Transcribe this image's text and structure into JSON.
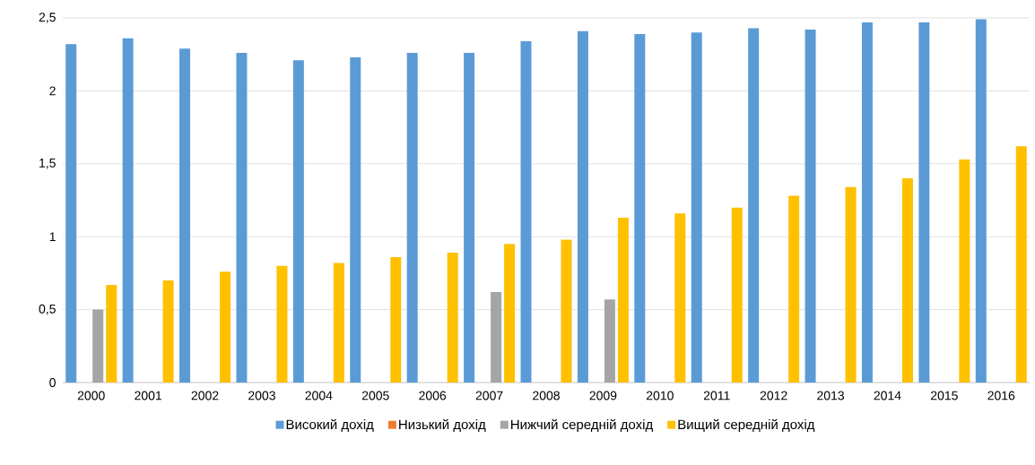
{
  "chart_data": {
    "type": "bar",
    "categories": [
      "2000",
      "2001",
      "2002",
      "2003",
      "2004",
      "2005",
      "2006",
      "2007",
      "2008",
      "2009",
      "2010",
      "2011",
      "2012",
      "2013",
      "2014",
      "2015",
      "2016"
    ],
    "series": [
      {
        "name": "Високий дохід",
        "color": "#5b9bd5",
        "values": [
          2.32,
          2.36,
          2.29,
          2.26,
          2.21,
          2.23,
          2.26,
          2.26,
          2.34,
          2.41,
          2.39,
          2.4,
          2.43,
          2.42,
          2.47,
          2.47,
          2.49
        ]
      },
      {
        "name": "Низький дохід",
        "color": "#ed7d31",
        "values": [
          null,
          null,
          null,
          null,
          null,
          null,
          null,
          null,
          null,
          null,
          null,
          null,
          null,
          null,
          null,
          null,
          null
        ]
      },
      {
        "name": "Нижчий середній дохід",
        "color": "#a5a5a5",
        "values": [
          0.5,
          null,
          null,
          null,
          null,
          null,
          null,
          0.62,
          null,
          0.57,
          null,
          null,
          null,
          null,
          null,
          null,
          null
        ]
      },
      {
        "name": "Вищий середній дохід",
        "color": "#ffc000",
        "values": [
          0.67,
          0.7,
          0.76,
          0.8,
          0.82,
          0.86,
          0.89,
          0.95,
          0.98,
          1.13,
          1.16,
          1.2,
          1.28,
          1.34,
          1.4,
          1.53,
          1.62
        ]
      }
    ],
    "ylim": [
      0,
      2.5
    ],
    "yticks": [
      0,
      {
        "value": 0.5,
        "label": "0,5"
      },
      1,
      {
        "value": 1.5,
        "label": "1,5"
      },
      2,
      {
        "value": 2.5,
        "label": "2,5"
      }
    ],
    "grid": "y",
    "legend": "bottom"
  }
}
